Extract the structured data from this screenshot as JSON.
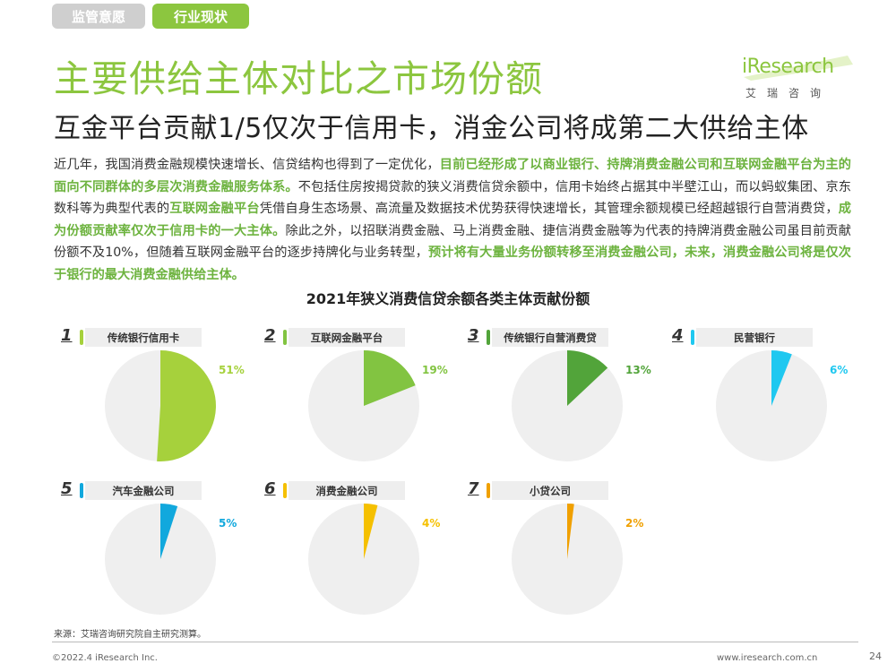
{
  "tabs": [
    "监管意愿",
    "行业现状"
  ],
  "title": "主要供给主体对比之市场份额",
  "subtitle": "互金平台贡献1/5仅次于信用卡，消金公司将成第二大供给主体",
  "logo": {
    "word": "iResearch",
    "cn": "艾瑞咨询"
  },
  "intro": [
    {
      "t": "近几年，我国消费金融规模快速增长、信贷结构也得到了一定优化，",
      "hl": false
    },
    {
      "t": "目前已经形成了以商业银行、持牌消费金融公司和互联网金融平台为主的面向不同群体的多层次消费金融服务体系。",
      "hl": true
    },
    {
      "t": "不包括住房按揭贷款的狭义消费信贷余额中，信用卡始终占据其中半壁江山，而以蚂蚁集团、京东数科等为典型代表的",
      "hl": false
    },
    {
      "t": "互联网金融平台",
      "hl": true
    },
    {
      "t": "凭借自身生态场景、高流量及数据技术优势获得快速增长，其管理余额规模已经超越银行自营消费贷，",
      "hl": false
    },
    {
      "t": "成为份额贡献率仅次于信用卡的一大主体。",
      "hl": true
    },
    {
      "t": "除此之外，以招联消费金融、马上消费金融、捷信消费金融等为代表的持牌消费金融公司虽目前贡献份额不及10%，但随着互联网金融平台的逐步持牌化与业务转型，",
      "hl": false
    },
    {
      "t": "预计将有大量业务份额转移至消费金融公司，未来，消费金融公司将是仅次于银行的最大消费金融供给主体。",
      "hl": true
    }
  ],
  "chart_data": {
    "type": "pie",
    "title": "2021年狭义消费信贷余额各类主体贡献份额",
    "unit": "%",
    "items": [
      {
        "rank": "1",
        "name": "传统银行信用卡",
        "value": 51,
        "label": "51%",
        "color": "#a6d13c"
      },
      {
        "rank": "2",
        "name": "互联网金融平台",
        "value": 19,
        "label": "19%",
        "color": "#82c441"
      },
      {
        "rank": "3",
        "name": "传统银行自营消费贷",
        "value": 13,
        "label": "13%",
        "color": "#52a43a"
      },
      {
        "rank": "4",
        "name": "民营银行",
        "value": 6,
        "label": "6%",
        "color": "#1fc8f0"
      },
      {
        "rank": "5",
        "name": "汽车金融公司",
        "value": 5,
        "label": "5%",
        "color": "#11a8dd"
      },
      {
        "rank": "6",
        "name": "消费金融公司",
        "value": 4,
        "label": "4%",
        "color": "#f5c000"
      },
      {
        "rank": "7",
        "name": "小贷公司",
        "value": 2,
        "label": "2%",
        "color": "#f0a000"
      }
    ],
    "remainder_color": "#efefef"
  },
  "source": "来源：艾瑞咨询研究院自主研究测算。",
  "footer": {
    "copyright": "©2022.4 iResearch Inc.",
    "url": "www.iresearch.com.cn",
    "page": "24"
  }
}
